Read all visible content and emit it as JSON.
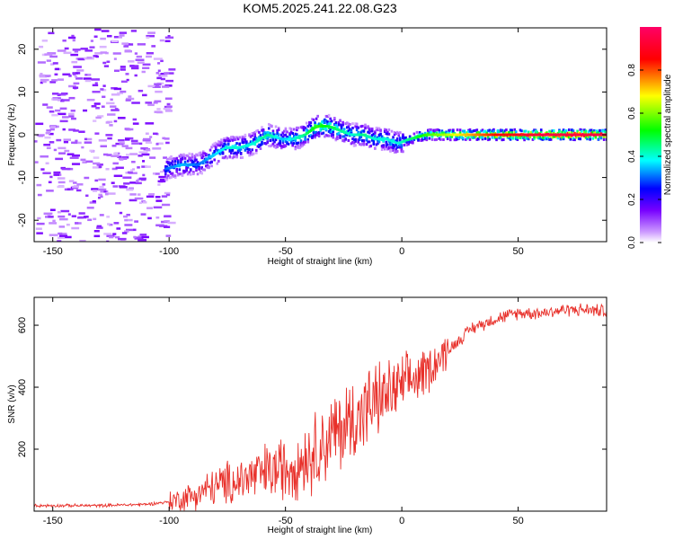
{
  "title": "KOM5.2025.241.22.08.G23",
  "colors": {
    "snr_line": "#e8302a",
    "background": "#ffffff",
    "axis": "#000000",
    "colormap": [
      "#ffffff",
      "#cc99ff",
      "#7700ff",
      "#0000ff",
      "#00ffff",
      "#00ff00",
      "#ffff00",
      "#ff0000",
      "#ff0066"
    ]
  },
  "chart_data": [
    {
      "type": "heatmap",
      "title": "KOM5.2025.241.22.08.G23",
      "xlabel": "Height of straight line (km)",
      "ylabel": "Frequency (Hz)",
      "xlim": [
        -158,
        88
      ],
      "ylim": [
        -25,
        25
      ],
      "xticks": [
        -150,
        -100,
        -50,
        0,
        50
      ],
      "yticks": [
        -20,
        -10,
        0,
        10,
        20
      ],
      "colorbar": {
        "label": "Normalized spectral amplitude",
        "range": [
          0,
          1
        ],
        "ticks": [
          0.0,
          0.2,
          0.4,
          0.6,
          0.8
        ]
      },
      "ridge": {
        "description": "Doppler frequency track of peak amplitude vs height",
        "x": [
          -102,
          -95,
          -88,
          -82,
          -76,
          -70,
          -64,
          -58,
          -52,
          -47,
          -42,
          -37,
          -32,
          -27,
          -22,
          -17,
          -12,
          -7,
          -2,
          3,
          10,
          20,
          30,
          40,
          50,
          60,
          70,
          80,
          88
        ],
        "freq_hz": [
          -8,
          -7,
          -7,
          -5,
          -3,
          -3,
          -2,
          0,
          -1,
          -1,
          0,
          2,
          2,
          1,
          0,
          0,
          -1,
          -1,
          -2,
          -1,
          0,
          0,
          0,
          0,
          0,
          0,
          0,
          0,
          0
        ],
        "amplitude": [
          0.3,
          0.35,
          0.3,
          0.35,
          0.4,
          0.4,
          0.4,
          0.45,
          0.35,
          0.4,
          0.45,
          0.55,
          0.5,
          0.45,
          0.4,
          0.45,
          0.4,
          0.4,
          0.4,
          0.45,
          0.55,
          0.65,
          0.75,
          0.85,
          0.9,
          0.95,
          0.95,
          0.95,
          0.95
        ]
      },
      "noise_region_x": [
        -158,
        -100
      ]
    },
    {
      "type": "line",
      "xlabel": "Height of straight line (km)",
      "ylabel": "SNR (v/v)",
      "xlim": [
        -158,
        88
      ],
      "ylim": [
        0,
        690
      ],
      "xticks": [
        -150,
        -100,
        -50,
        0,
        50
      ],
      "yticks": [
        200,
        400,
        600
      ],
      "series": [
        {
          "name": "SNR",
          "x": [
            -158,
            -130,
            -110,
            -100,
            -90,
            -80,
            -70,
            -60,
            -50,
            -40,
            -30,
            -20,
            -10,
            0,
            10,
            20,
            30,
            40,
            50,
            60,
            70,
            80,
            88
          ],
          "values": [
            18,
            18,
            22,
            30,
            50,
            80,
            100,
            120,
            140,
            180,
            240,
            300,
            360,
            400,
            450,
            520,
            590,
            620,
            640,
            640,
            650,
            650,
            645
          ]
        }
      ]
    }
  ]
}
